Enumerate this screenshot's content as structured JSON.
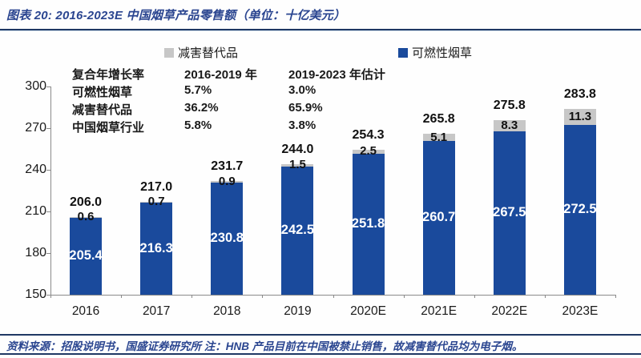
{
  "header": {
    "title": "图表 20: 2016-2023E 中国烟草产品零售额（单位：十亿美元）"
  },
  "legend": {
    "items": [
      {
        "label": "减害替代品",
        "color": "#c7c7c7"
      },
      {
        "label": "可燃性烟草",
        "color": "#1a4a9c"
      }
    ]
  },
  "cagr_table": {
    "header": [
      "复合年增长率",
      "2016-2019 年",
      "2019-2023 年估计"
    ],
    "rows": [
      [
        "可燃性烟草",
        "5.7%",
        "3.0%"
      ],
      [
        "减害替代品",
        "36.2%",
        "65.9%"
      ],
      [
        "中国烟草行业",
        "5.8%",
        "3.8%"
      ]
    ]
  },
  "chart_data": {
    "type": "bar",
    "stacked": true,
    "title": "2016-2023E 中国烟草产品零售额",
    "unit": "十亿美元",
    "categories": [
      "2016",
      "2017",
      "2018",
      "2019",
      "2020E",
      "2021E",
      "2022E",
      "2023E"
    ],
    "series": [
      {
        "name": "可燃性烟草",
        "color": "#1a4a9c",
        "values": [
          205.4,
          216.3,
          230.8,
          242.5,
          251.8,
          260.7,
          267.5,
          272.5
        ]
      },
      {
        "name": "减害替代品",
        "color": "#c7c7c7",
        "values": [
          0.6,
          0.7,
          0.9,
          1.5,
          2.5,
          5.1,
          8.3,
          11.3
        ]
      }
    ],
    "totals": [
      206.0,
      217.0,
      231.7,
      244.0,
      254.3,
      265.8,
      275.8,
      283.8
    ],
    "ylim": [
      150,
      300
    ],
    "yticks": [
      150,
      180,
      210,
      240,
      270,
      300
    ],
    "grid": false,
    "legend_position": "top"
  },
  "footer": {
    "text": "资料来源：招股说明书，国盛证券研究所 注：HNB 产品目前在中国被禁止销售，故减害替代品均为电子烟。"
  }
}
